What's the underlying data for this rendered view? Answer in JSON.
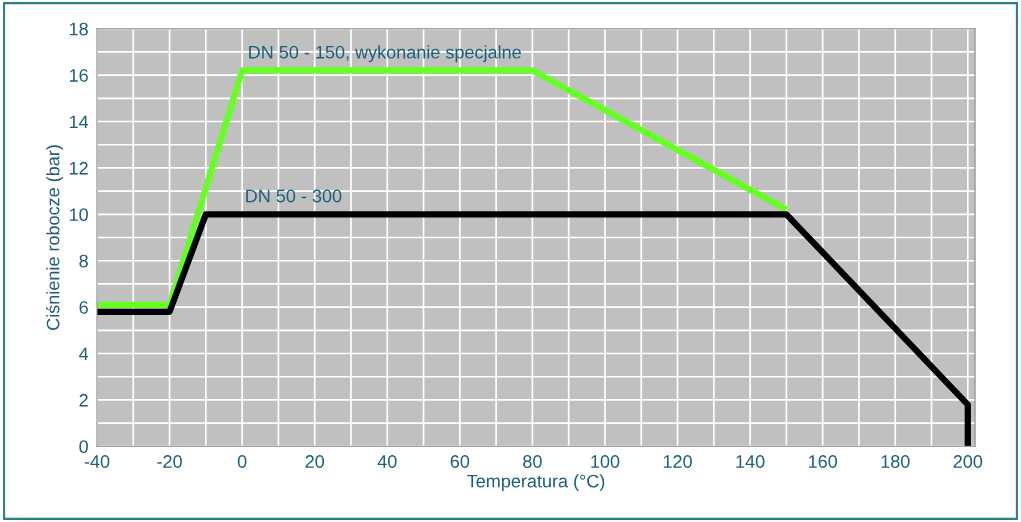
{
  "chart_data": {
    "type": "line",
    "xlabel": "Temperatura (°C)",
    "ylabel": "Ciśnienie robocze (bar)",
    "series": [
      {
        "name": "DN 50 - 150, wykonanie specjalne",
        "x": [
          -40,
          -20,
          0,
          80,
          150
        ],
        "values": [
          6.1,
          6.1,
          16.2,
          16.2,
          10.2
        ],
        "color": "#66ff22"
      },
      {
        "name": "DN 50 - 300",
        "x": [
          -40,
          -20,
          -10,
          150,
          200,
          200
        ],
        "values": [
          5.8,
          5.8,
          10,
          10,
          1.8,
          0
        ],
        "color": "#000000"
      }
    ],
    "xlim": [
      -40,
      202
    ],
    "xticks": [
      -40,
      {
        "value": -30,
        "label": null
      },
      -20,
      {
        "value": -10,
        "label": null
      },
      0,
      {
        "value": 10,
        "label": null
      },
      20,
      {
        "value": 30,
        "label": null
      },
      40,
      {
        "value": 50,
        "label": null
      },
      60,
      {
        "value": 70,
        "label": null
      },
      80,
      {
        "value": 90,
        "label": null
      },
      100,
      {
        "value": 110,
        "label": null
      },
      120,
      {
        "value": 130,
        "label": null
      },
      140,
      {
        "value": 150,
        "label": null
      },
      160,
      {
        "value": 170,
        "label": null
      },
      180,
      {
        "value": 190,
        "label": null
      },
      200
    ],
    "ylim": [
      0,
      18
    ],
    "yticks": [
      0,
      {
        "value": 1,
        "label": null
      },
      2,
      {
        "value": 3,
        "label": null
      },
      4,
      {
        "value": 5,
        "label": null
      },
      6,
      {
        "value": 7,
        "label": null
      },
      8,
      {
        "value": 9,
        "label": null
      },
      10,
      {
        "value": 11,
        "label": null
      },
      12,
      {
        "value": 13,
        "label": null
      },
      14,
      {
        "value": 15,
        "label": null
      },
      16,
      {
        "value": 17,
        "label": null
      },
      18
    ],
    "grid": true,
    "line_style": "solid",
    "marker": "none"
  }
}
